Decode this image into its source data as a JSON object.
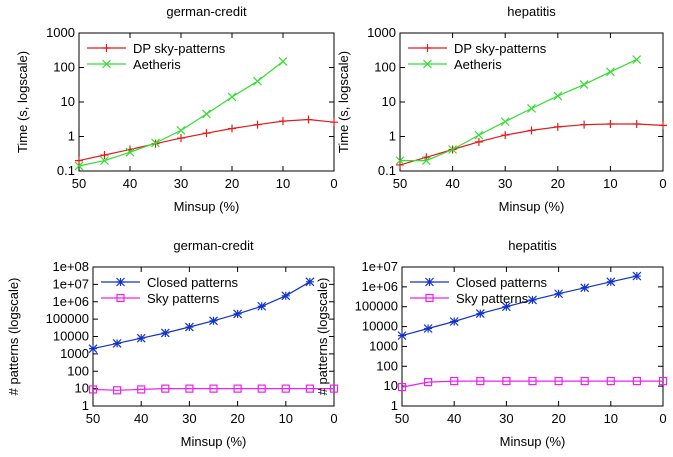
{
  "chart_data": [
    {
      "type": "line",
      "title": "german-credit",
      "xlabel": "Minsup (%)",
      "ylabel": "Time (s, logscale)",
      "xlim": [
        50,
        0
      ],
      "ylim": [
        0.1,
        1000
      ],
      "yscale": "log",
      "x_ticks": [
        "50",
        "40",
        "30",
        "20",
        "10",
        "0"
      ],
      "y_ticks": [
        "0.1",
        "1",
        "10",
        "100",
        "1000"
      ],
      "legend": "top-left",
      "series": [
        {
          "name": "DP sky-patterns",
          "color": "#e41a1c",
          "marker": "plus",
          "x": [
            50,
            45,
            40,
            35,
            30,
            25,
            20,
            15,
            10,
            5,
            0
          ],
          "y": [
            0.2,
            0.29,
            0.42,
            0.62,
            0.9,
            1.25,
            1.7,
            2.2,
            2.8,
            3.1,
            2.6
          ]
        },
        {
          "name": "Aetheris",
          "color": "#33dd33",
          "marker": "x",
          "x": [
            50,
            45,
            40,
            35,
            30,
            25,
            20,
            15,
            10
          ],
          "y": [
            0.14,
            0.2,
            0.35,
            0.65,
            1.5,
            4.5,
            14,
            40,
            150
          ]
        }
      ]
    },
    {
      "type": "line",
      "title": "hepatitis",
      "xlabel": "Minsup (%)",
      "ylabel": "Time (s, logscale)",
      "xlim": [
        50,
        0
      ],
      "ylim": [
        0.1,
        1000
      ],
      "yscale": "log",
      "x_ticks": [
        "50",
        "40",
        "30",
        "20",
        "10",
        "0"
      ],
      "y_ticks": [
        "0.1",
        "1",
        "10",
        "100",
        "1000"
      ],
      "legend": "top-left",
      "series": [
        {
          "name": "DP sky-patterns",
          "color": "#e41a1c",
          "marker": "plus",
          "x": [
            50,
            45,
            40,
            35,
            30,
            25,
            20,
            15,
            10,
            5,
            0
          ],
          "y": [
            0.15,
            0.25,
            0.42,
            0.7,
            1.1,
            1.5,
            1.9,
            2.2,
            2.3,
            2.3,
            2.1
          ]
        },
        {
          "name": "Aetheris",
          "color": "#33dd33",
          "marker": "x",
          "x": [
            50,
            45,
            40,
            35,
            30,
            25,
            20,
            15,
            10,
            5
          ],
          "y": [
            0.2,
            0.2,
            0.42,
            1.1,
            2.7,
            6.5,
            15,
            32,
            75,
            170
          ]
        }
      ]
    },
    {
      "type": "line",
      "title": "german-credit",
      "xlabel": "Minsup (%)",
      "ylabel": "# patterns (logscale)",
      "xlim": [
        50,
        0
      ],
      "ylim": [
        1,
        100000000
      ],
      "yscale": "log",
      "x_ticks": [
        "50",
        "40",
        "30",
        "20",
        "10",
        "0"
      ],
      "y_ticks": [
        "1",
        "10",
        "100",
        "1000",
        "10000",
        "100000",
        "1e+06",
        "1e+07",
        "1e+08"
      ],
      "legend": "top-left",
      "series": [
        {
          "name": "Closed patterns",
          "color": "#1133cc",
          "marker": "star",
          "x": [
            50,
            45,
            40,
            35,
            30,
            25,
            20,
            15,
            10,
            5
          ],
          "y": [
            2000,
            4000,
            8000,
            16000,
            35000,
            80000,
            200000,
            550000,
            2200000,
            14000000
          ]
        },
        {
          "name": "Sky patterns",
          "color": "#ee22ee",
          "marker": "square",
          "x": [
            50,
            45,
            40,
            35,
            30,
            25,
            20,
            15,
            10,
            5,
            0
          ],
          "y": [
            9,
            8,
            9,
            10,
            10,
            10,
            10,
            10,
            10,
            10,
            10
          ]
        }
      ]
    },
    {
      "type": "line",
      "title": "hepatitis",
      "xlabel": "Minsup (%)",
      "ylabel": "# patterns (logscale)",
      "xlim": [
        50,
        0
      ],
      "ylim": [
        1,
        10000000
      ],
      "yscale": "log",
      "x_ticks": [
        "50",
        "40",
        "30",
        "20",
        "10",
        "0"
      ],
      "y_ticks": [
        "1",
        "10",
        "100",
        "1000",
        "10000",
        "100000",
        "1e+06",
        "1e+07"
      ],
      "legend": "top-left",
      "series": [
        {
          "name": "Closed patterns",
          "color": "#1133cc",
          "marker": "star",
          "x": [
            50,
            45,
            40,
            35,
            30,
            25,
            20,
            15,
            10,
            5
          ],
          "y": [
            3500,
            8000,
            18000,
            45000,
            100000,
            220000,
            450000,
            900000,
            1800000,
            3500000
          ]
        },
        {
          "name": "Sky patterns",
          "color": "#ee22ee",
          "marker": "square",
          "x": [
            50,
            45,
            40,
            35,
            30,
            25,
            20,
            15,
            10,
            5,
            0
          ],
          "y": [
            9,
            16,
            18,
            18,
            18,
            18,
            18,
            18,
            18,
            18,
            18
          ]
        }
      ]
    }
  ]
}
